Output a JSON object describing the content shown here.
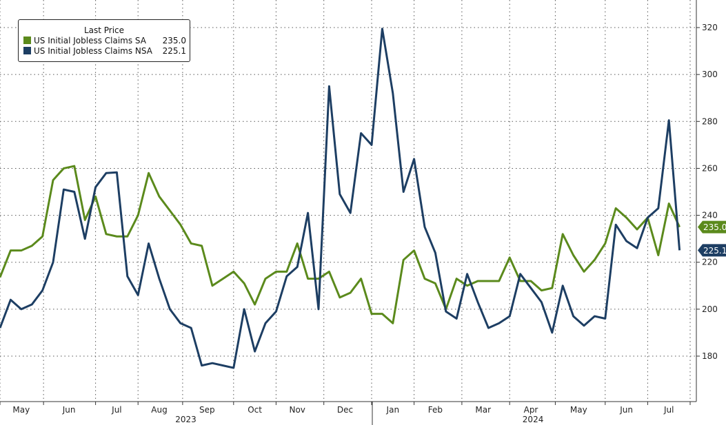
{
  "chart_data": {
    "type": "line",
    "title": "",
    "legend_title": "Last Price",
    "legend_placement": "top-left",
    "xlabel": "",
    "ylabel": "",
    "ylim": [
      160,
      335
    ],
    "y_ticks": [
      180,
      200,
      220,
      240,
      260,
      280,
      300,
      320
    ],
    "grid": true,
    "x_month_labels": [
      {
        "label": "May",
        "x": 2
      },
      {
        "label": "Jun",
        "x": 6.5
      },
      {
        "label": "Jul",
        "x": 11
      },
      {
        "label": "Aug",
        "x": 15
      },
      {
        "label": "Sep",
        "x": 19.5
      },
      {
        "label": "Oct",
        "x": 24
      },
      {
        "label": "Nov",
        "x": 28
      },
      {
        "label": "Dec",
        "x": 32.5
      },
      {
        "label": "Jan",
        "x": 37
      },
      {
        "label": "Feb",
        "x": 41
      },
      {
        "label": "Mar",
        "x": 45.5
      },
      {
        "label": "Apr",
        "x": 50
      },
      {
        "label": "May",
        "x": 54.5
      },
      {
        "label": "Jun",
        "x": 59
      },
      {
        "label": "Jul",
        "x": 63
      }
    ],
    "x_year_labels": [
      {
        "label": "2023",
        "x": 17.5
      },
      {
        "label": "2024",
        "x": 50.2
      }
    ],
    "series": [
      {
        "name": "US Initial Jobless Claims SA",
        "last": "235.0",
        "color": "#5b8a1c",
        "values": [
          213.6,
          225,
          225,
          227,
          231,
          255,
          260,
          261,
          238,
          248,
          232,
          231,
          231,
          240,
          258,
          248,
          242,
          236,
          228,
          227,
          210,
          213,
          216,
          211,
          202,
          213,
          216,
          216,
          228,
          213,
          213,
          216,
          205,
          207,
          213,
          198,
          198,
          194,
          221,
          225,
          213,
          211,
          200,
          213,
          210,
          212,
          212,
          212,
          222,
          212,
          212,
          208,
          209,
          232,
          223,
          216,
          221,
          228,
          243,
          239,
          234,
          239,
          223,
          245,
          235
        ]
      },
      {
        "name": "US Initial Jobless Claims NSA",
        "last": "225.1",
        "color": "#1d3e63",
        "values": [
          192,
          204,
          200,
          202,
          208,
          220,
          251,
          250,
          230,
          252,
          258,
          258.3,
          214,
          206,
          228,
          213,
          200,
          194,
          192,
          176,
          177,
          176,
          175,
          200,
          182,
          194,
          199,
          214,
          218,
          241,
          200,
          295,
          249,
          241,
          275,
          270,
          319.5,
          292,
          250,
          264,
          235,
          224,
          199,
          196,
          215,
          203,
          192,
          194,
          197,
          215,
          209,
          203,
          190,
          210,
          197,
          193,
          197,
          196,
          236,
          229,
          226,
          239,
          243,
          280.5,
          225.1
        ]
      }
    ]
  }
}
